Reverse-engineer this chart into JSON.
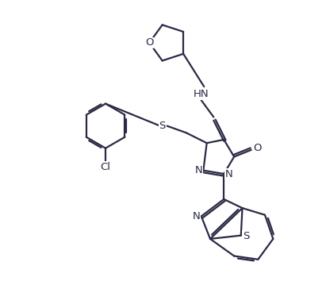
{
  "bg_color": "#ffffff",
  "line_color": "#2a2a45",
  "line_width": 1.6,
  "figsize": [
    4.11,
    3.88
  ],
  "dpi": 100,
  "xlim": [
    -4.6,
    3.8
  ],
  "ylim": [
    -4.2,
    4.8
  ]
}
